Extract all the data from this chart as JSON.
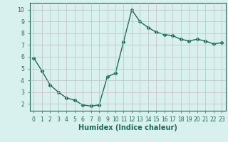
{
  "x": [
    0,
    1,
    2,
    3,
    4,
    5,
    6,
    7,
    8,
    9,
    10,
    11,
    12,
    13,
    14,
    15,
    16,
    17,
    18,
    19,
    20,
    21,
    22,
    23
  ],
  "y": [
    5.9,
    4.8,
    3.6,
    3.0,
    2.5,
    2.3,
    1.9,
    1.8,
    1.9,
    4.3,
    4.6,
    7.3,
    10.0,
    9.0,
    8.5,
    8.1,
    7.9,
    7.8,
    7.5,
    7.35,
    7.5,
    7.35,
    7.1,
    7.2
  ],
  "line_color": "#1a6b5a",
  "marker": "D",
  "marker_size": 2.2,
  "bg_color": "#d8f0ee",
  "grid_color": "#c0c0c0",
  "xlabel": "Humidex (Indice chaleur)",
  "xlim": [
    -0.5,
    23.5
  ],
  "ylim": [
    1.4,
    10.6
  ],
  "yticks": [
    2,
    3,
    4,
    5,
    6,
    7,
    8,
    9,
    10
  ],
  "xticks": [
    0,
    1,
    2,
    3,
    4,
    5,
    6,
    7,
    8,
    9,
    10,
    11,
    12,
    13,
    14,
    15,
    16,
    17,
    18,
    19,
    20,
    21,
    22,
    23
  ],
  "tick_label_fontsize": 5.5,
  "xlabel_fontsize": 7.0,
  "line_width": 1.0
}
